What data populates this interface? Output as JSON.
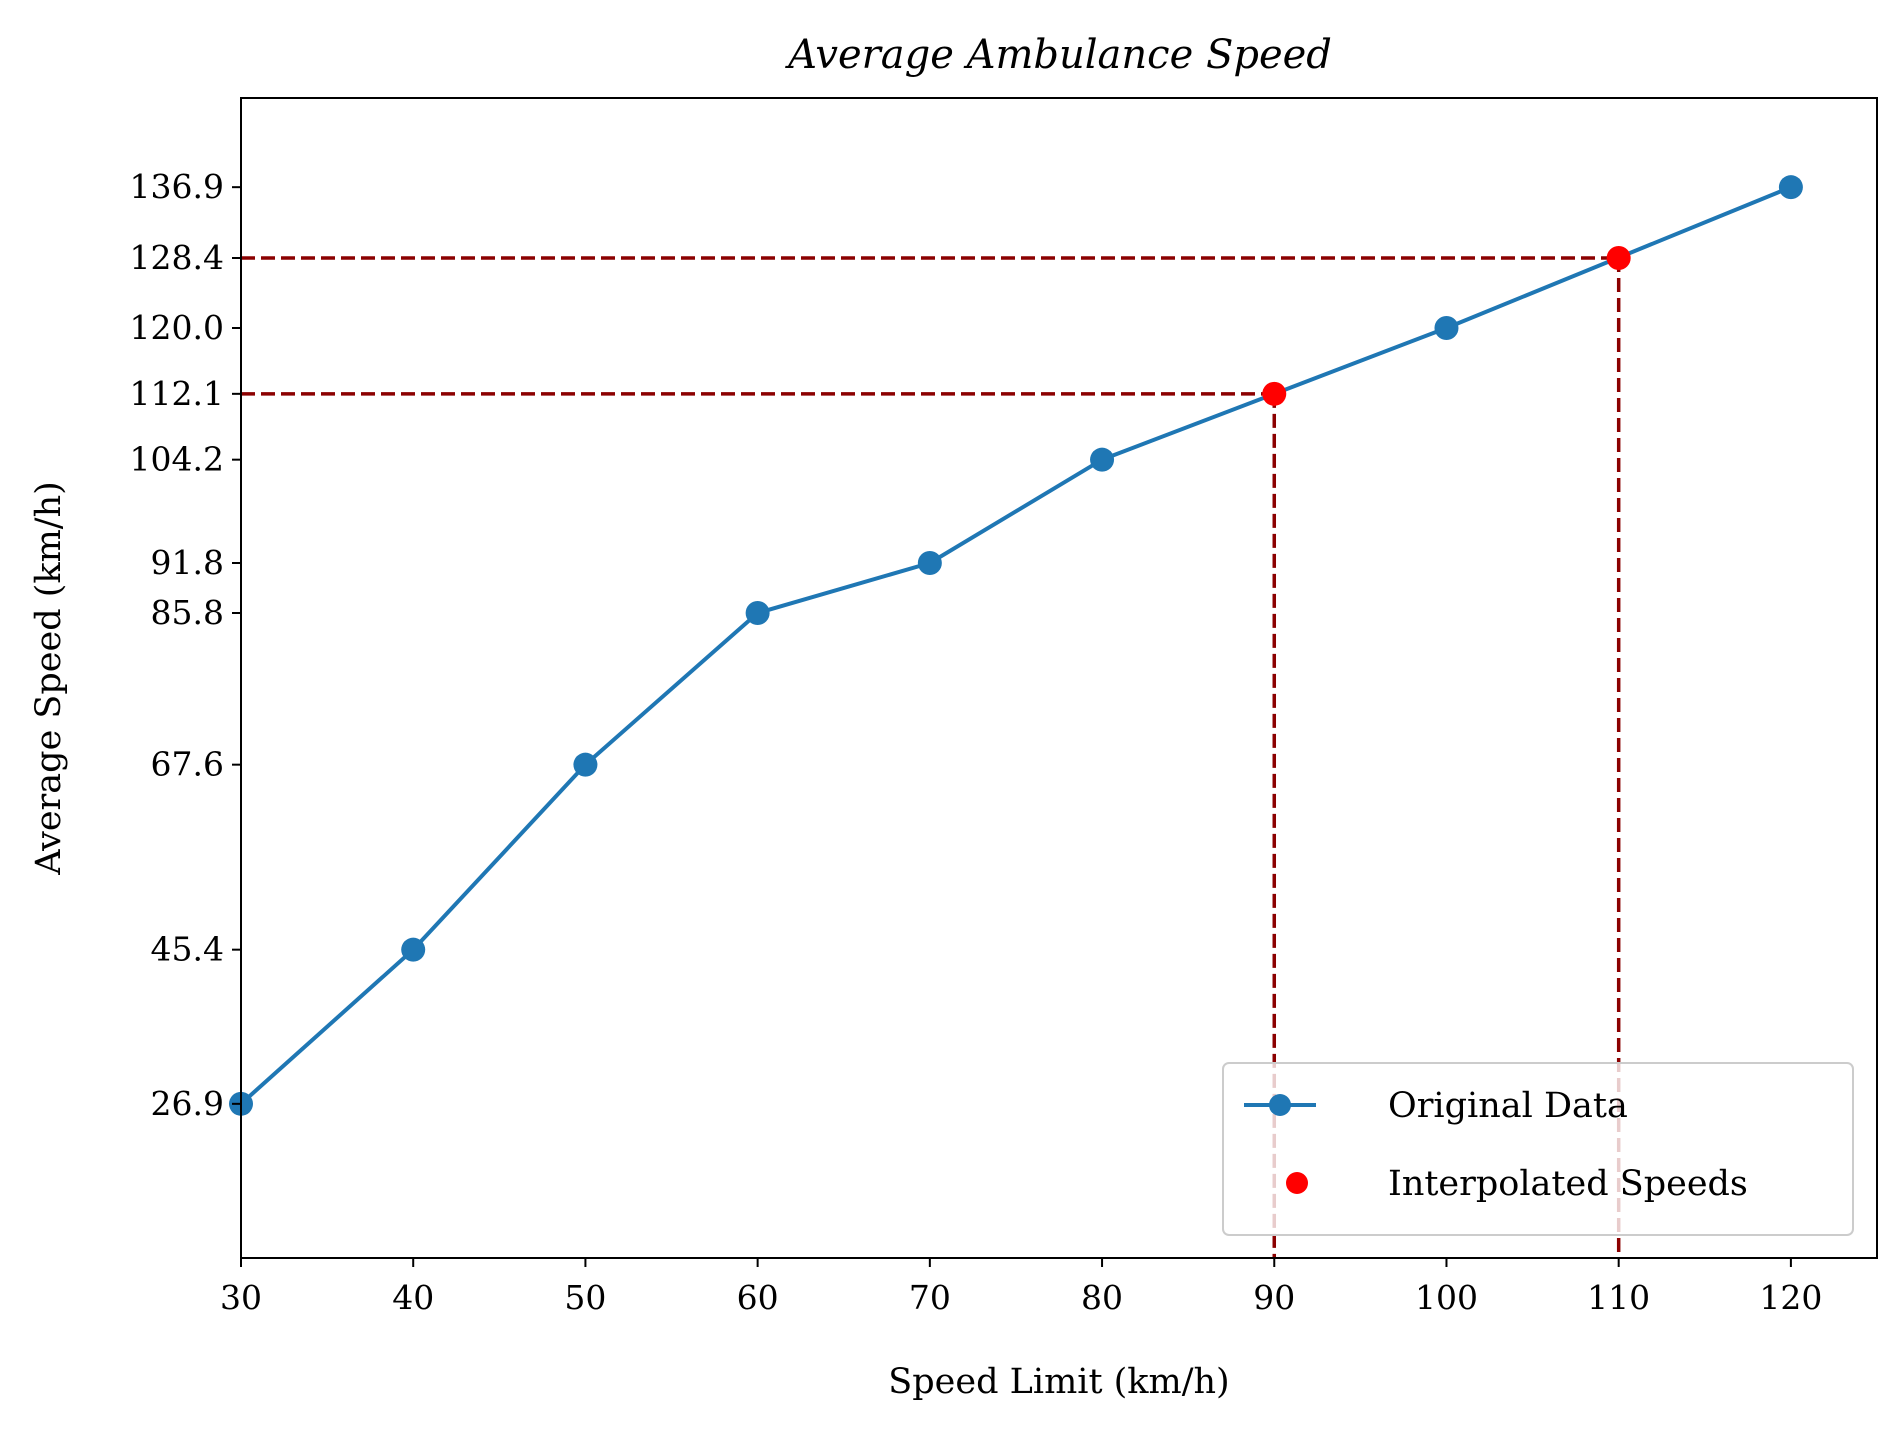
{
  "chart_data": {
    "type": "line",
    "title": "Average Ambulance Speed",
    "xlabel": "Speed Limit (km/h)",
    "ylabel": "Average Speed (km/h)",
    "xlim": [
      30,
      125
    ],
    "ylim": [
      8.4,
      147.6
    ],
    "x_ticks": [
      "30",
      "40",
      "50",
      "60",
      "70",
      "80",
      "90",
      "100",
      "110",
      "120"
    ],
    "y_ticks": [
      "26.9",
      "45.4",
      "67.6",
      "85.8",
      "91.8",
      "104.2",
      "112.1",
      "120.0",
      "128.4",
      "136.9"
    ],
    "grid": false,
    "legend_position": "bottom-right",
    "series": [
      {
        "name": "Original Data",
        "type": "line",
        "marker": "circle",
        "color": "#1f77b4",
        "x": [
          30,
          40,
          50,
          60,
          70,
          80,
          100,
          120
        ],
        "y": [
          26.9,
          45.4,
          67.6,
          85.8,
          91.8,
          104.2,
          120.0,
          136.9
        ]
      },
      {
        "name": "Interpolated Speeds",
        "type": "scatter",
        "marker": "circle",
        "color": "#ff0000",
        "x": [
          90,
          110
        ],
        "y": [
          112.1,
          128.4
        ]
      }
    ],
    "reference_lines": {
      "color": "#8b0000",
      "style": "dashed",
      "points": [
        {
          "x": 90,
          "y": 112.1
        },
        {
          "x": 110,
          "y": 128.4
        }
      ]
    }
  }
}
